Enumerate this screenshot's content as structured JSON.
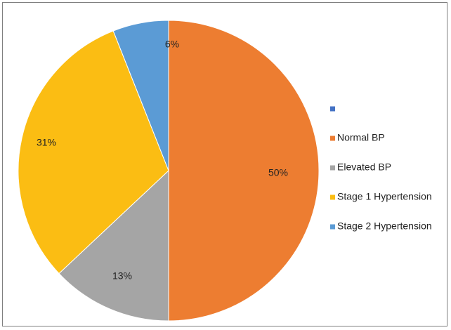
{
  "chart_data": {
    "type": "pie",
    "title": "",
    "categories": [
      "",
      "Normal BP",
      "Elevated BP",
      "Stage 1 Hypertension",
      "Stage 2 Hypertension"
    ],
    "values": [
      0,
      50,
      13,
      31,
      6
    ],
    "labels": [
      "",
      "50%",
      "13%",
      "31%",
      "6%"
    ],
    "colors": [
      "#4472c4",
      "#ed7d31",
      "#a5a5a5",
      "#fbbd13",
      "#5b9bd5"
    ],
    "legend_position": "right",
    "start_angle": "12 o'clock, clockwise"
  }
}
